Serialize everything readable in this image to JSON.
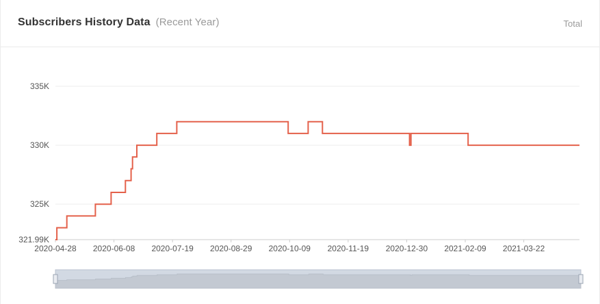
{
  "header": {
    "title": "Subscribers History Data",
    "subtitle": "(Recent Year)",
    "total_label": "Total"
  },
  "colors": {
    "line": "#e4604a",
    "grid": "#eeeeee",
    "axis": "#cccccc",
    "slider_fill": "#d2d9e3",
    "slider_area": "#c3c9d2",
    "slider_border": "#b9c2cf"
  },
  "chart_data": {
    "type": "line",
    "title": "Subscribers History Data",
    "xlabel": "",
    "ylabel": "",
    "ylim": [
      321990,
      335000
    ],
    "y_ticks": [
      {
        "value": 321990,
        "label": "321.99K"
      },
      {
        "value": 325000,
        "label": "325K"
      },
      {
        "value": 330000,
        "label": "330K"
      },
      {
        "value": 335000,
        "label": "335K"
      }
    ],
    "x_range": [
      "2020-04-28",
      "2021-04-30"
    ],
    "x_ticks": [
      "2020-04-28",
      "2020-06-08",
      "2020-07-19",
      "2020-08-29",
      "2020-10-09",
      "2020-11-19",
      "2020-12-30",
      "2021-02-09",
      "2021-03-22"
    ],
    "grid": true,
    "step": true,
    "series": [
      {
        "points": [
          [
            "2020-04-28",
            321990
          ],
          [
            "2020-04-29",
            323000
          ],
          [
            "2020-05-06",
            324000
          ],
          [
            "2020-05-26",
            325000
          ],
          [
            "2020-06-06",
            326000
          ],
          [
            "2020-06-16",
            327000
          ],
          [
            "2020-06-20",
            328000
          ],
          [
            "2020-06-21",
            329000
          ],
          [
            "2020-06-24",
            330000
          ],
          [
            "2020-07-08",
            331000
          ],
          [
            "2020-07-22",
            332000
          ],
          [
            "2020-10-08",
            331000
          ],
          [
            "2020-10-22",
            332000
          ],
          [
            "2020-11-01",
            331000
          ],
          [
            "2021-01-01",
            330000
          ],
          [
            "2021-01-02",
            331000
          ],
          [
            "2021-02-11",
            330000
          ],
          [
            "2021-04-30",
            330000
          ]
        ]
      }
    ]
  }
}
